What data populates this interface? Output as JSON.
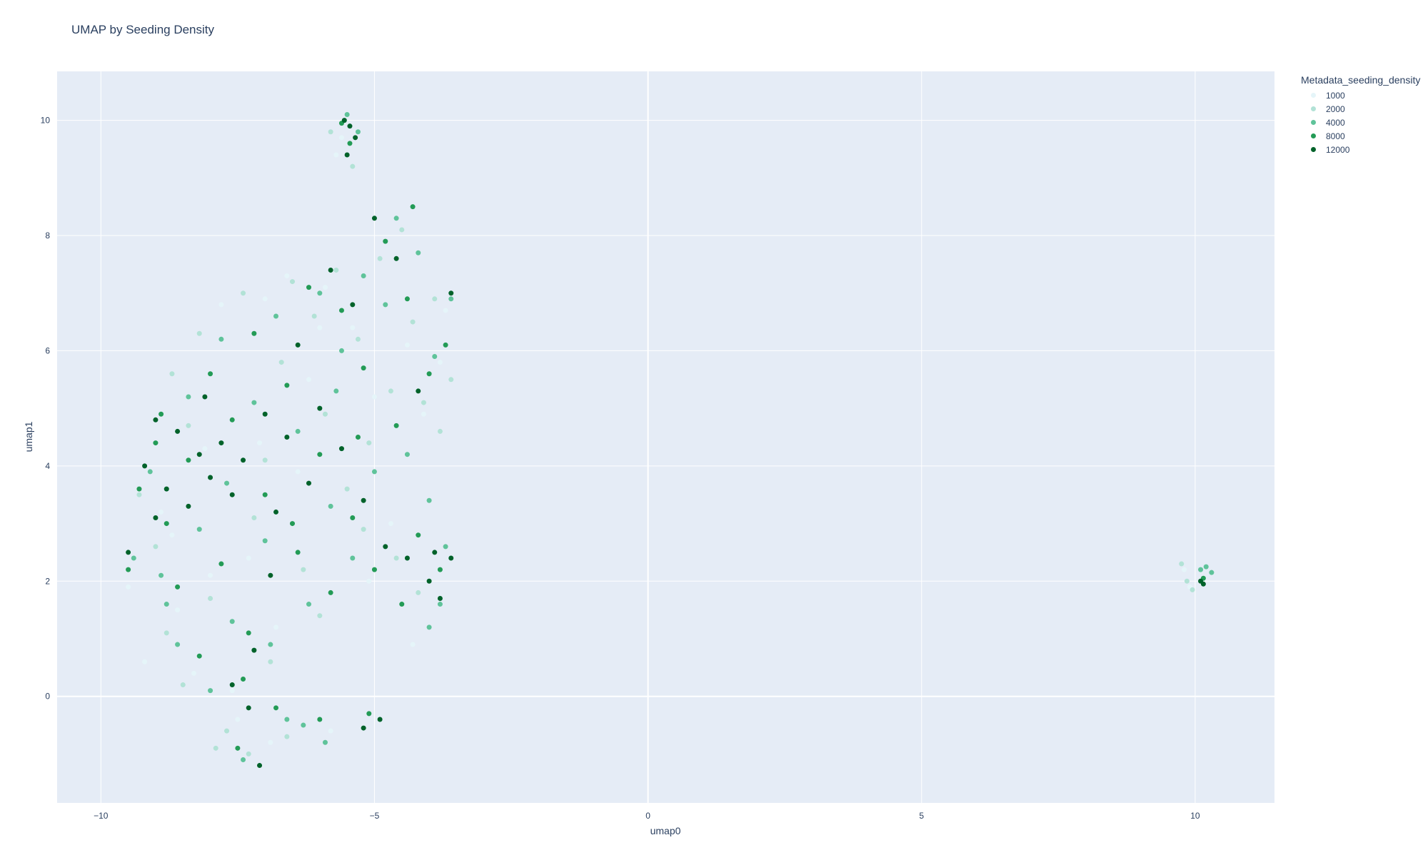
{
  "chart_data": {
    "type": "scatter",
    "title": "UMAP by Seeding Density",
    "xlabel": "umap0",
    "ylabel": "umap1",
    "xlim": [
      -10.8,
      11.45
    ],
    "ylim": [
      -1.85,
      10.85
    ],
    "xticks": [
      -10,
      -5,
      0,
      5,
      10
    ],
    "yticks": [
      0,
      2,
      4,
      6,
      8,
      10
    ],
    "xtick_labels": [
      "−10",
      "−5",
      "0",
      "5",
      "10"
    ],
    "ytick_labels": [
      "0",
      "2",
      "4",
      "6",
      "8",
      "10"
    ],
    "grid": true,
    "legend_placement": "right",
    "legend": {
      "title": "Metadata_seeding_density",
      "entries": [
        {
          "label": "1000",
          "color": "#e5f5f9"
        },
        {
          "label": "2000",
          "color": "#b2e2d6"
        },
        {
          "label": "4000",
          "color": "#5fc39a"
        },
        {
          "label": "8000",
          "color": "#239b56"
        },
        {
          "label": "12000",
          "color": "#00622a"
        }
      ]
    },
    "series": [
      {
        "name": "1000",
        "color": "#e5f5f9",
        "points": [
          [
            -8.9,
            3.2
          ],
          [
            -8.6,
            1.5
          ],
          [
            -8.3,
            0.4
          ],
          [
            -7.8,
            6.8
          ],
          [
            -7.5,
            -0.4
          ],
          [
            -7.0,
            6.9
          ],
          [
            -6.6,
            7.3
          ],
          [
            -6.2,
            5.5
          ],
          [
            -5.9,
            7.1
          ],
          [
            -5.4,
            6.4
          ],
          [
            -5.0,
            5.2
          ],
          [
            -4.7,
            3.0
          ],
          [
            -4.4,
            6.1
          ],
          [
            -4.1,
            4.9
          ],
          [
            -3.8,
            5.8
          ],
          [
            -3.7,
            6.7
          ],
          [
            -4.3,
            0.9
          ],
          [
            -5.1,
            2.0
          ],
          [
            -6.8,
            1.2
          ],
          [
            -7.3,
            2.4
          ],
          [
            -8.0,
            2.1
          ],
          [
            -8.7,
            2.8
          ],
          [
            -9.5,
            1.9
          ],
          [
            -9.2,
            0.6
          ],
          [
            -8.1,
            4.3
          ],
          [
            -6.4,
            3.9
          ],
          [
            -5.6,
            9.7
          ],
          [
            -5.7,
            9.4
          ],
          [
            9.8,
            2.2
          ],
          [
            9.9,
            1.9
          ],
          [
            -7.6,
            0.1
          ],
          [
            -6.9,
            -0.8
          ],
          [
            -5.8,
            -0.6
          ],
          [
            -7.1,
            4.4
          ],
          [
            -6.0,
            6.4
          ]
        ]
      },
      {
        "name": "2000",
        "color": "#b2e2d6",
        "points": [
          [
            -9.0,
            2.6
          ],
          [
            -8.8,
            1.1
          ],
          [
            -8.5,
            0.2
          ],
          [
            -8.2,
            6.3
          ],
          [
            -8.0,
            1.7
          ],
          [
            -7.7,
            -0.6
          ],
          [
            -7.4,
            7.0
          ],
          [
            -7.2,
            3.1
          ],
          [
            -6.9,
            0.6
          ],
          [
            -6.7,
            5.8
          ],
          [
            -6.5,
            7.2
          ],
          [
            -6.3,
            2.2
          ],
          [
            -6.1,
            6.6
          ],
          [
            -5.9,
            4.9
          ],
          [
            -5.7,
            7.4
          ],
          [
            -5.5,
            3.6
          ],
          [
            -5.3,
            6.2
          ],
          [
            -5.1,
            4.4
          ],
          [
            -4.9,
            7.6
          ],
          [
            -4.7,
            5.3
          ],
          [
            -4.5,
            8.1
          ],
          [
            -4.3,
            6.5
          ],
          [
            -4.1,
            5.1
          ],
          [
            -3.9,
            6.9
          ],
          [
            -3.8,
            4.6
          ],
          [
            -3.6,
            5.5
          ],
          [
            -4.2,
            1.8
          ],
          [
            -4.6,
            2.4
          ],
          [
            -5.8,
            9.8
          ],
          [
            -5.4,
            9.2
          ],
          [
            9.75,
            2.3
          ],
          [
            9.85,
            2.0
          ],
          [
            9.95,
            1.85
          ],
          [
            -7.9,
            -0.9
          ],
          [
            -7.3,
            -1.0
          ],
          [
            -6.6,
            -0.7
          ],
          [
            -8.4,
            4.7
          ],
          [
            -7.0,
            4.1
          ],
          [
            -9.3,
            3.5
          ],
          [
            -8.7,
            5.6
          ],
          [
            -6.0,
            1.4
          ],
          [
            -5.2,
            2.9
          ]
        ]
      },
      {
        "name": "4000",
        "color": "#5fc39a",
        "points": [
          [
            -9.1,
            3.9
          ],
          [
            -8.9,
            2.1
          ],
          [
            -8.6,
            0.9
          ],
          [
            -8.4,
            5.2
          ],
          [
            -8.2,
            2.9
          ],
          [
            -8.0,
            0.1
          ],
          [
            -7.8,
            6.2
          ],
          [
            -7.6,
            1.3
          ],
          [
            -7.4,
            -1.1
          ],
          [
            -7.2,
            5.1
          ],
          [
            -7.0,
            2.7
          ],
          [
            -6.8,
            6.6
          ],
          [
            -6.6,
            -0.4
          ],
          [
            -6.4,
            4.6
          ],
          [
            -6.2,
            1.6
          ],
          [
            -6.0,
            7.0
          ],
          [
            -5.8,
            3.3
          ],
          [
            -5.6,
            6.0
          ],
          [
            -5.4,
            2.4
          ],
          [
            -5.2,
            7.3
          ],
          [
            -5.0,
            3.9
          ],
          [
            -4.8,
            6.8
          ],
          [
            -4.6,
            8.3
          ],
          [
            -4.4,
            4.2
          ],
          [
            -4.2,
            7.7
          ],
          [
            -4.0,
            3.4
          ],
          [
            -3.9,
            5.9
          ],
          [
            -3.7,
            2.6
          ],
          [
            -3.6,
            6.9
          ],
          [
            -3.8,
            1.6
          ],
          [
            -4.0,
            1.2
          ],
          [
            -5.5,
            10.1
          ],
          [
            -5.3,
            9.8
          ],
          [
            10.1,
            2.2
          ],
          [
            10.2,
            2.25
          ],
          [
            10.3,
            2.15
          ],
          [
            -6.3,
            -0.5
          ],
          [
            -5.9,
            -0.8
          ],
          [
            -8.8,
            1.6
          ],
          [
            -7.7,
            3.7
          ],
          [
            -6.9,
            0.9
          ],
          [
            -9.4,
            2.4
          ],
          [
            -5.7,
            5.3
          ]
        ]
      },
      {
        "name": "8000",
        "color": "#239b56",
        "points": [
          [
            -9.3,
            3.6
          ],
          [
            -9.0,
            4.4
          ],
          [
            -8.8,
            3.0
          ],
          [
            -8.6,
            1.9
          ],
          [
            -8.4,
            4.1
          ],
          [
            -8.2,
            0.7
          ],
          [
            -8.0,
            5.6
          ],
          [
            -7.8,
            2.3
          ],
          [
            -7.6,
            4.8
          ],
          [
            -7.4,
            0.3
          ],
          [
            -7.2,
            6.3
          ],
          [
            -7.0,
            3.5
          ],
          [
            -6.8,
            -0.2
          ],
          [
            -6.6,
            5.4
          ],
          [
            -6.4,
            2.5
          ],
          [
            -6.2,
            7.1
          ],
          [
            -6.0,
            4.2
          ],
          [
            -5.8,
            1.8
          ],
          [
            -5.6,
            6.7
          ],
          [
            -5.4,
            3.1
          ],
          [
            -5.2,
            5.7
          ],
          [
            -5.0,
            2.2
          ],
          [
            -4.8,
            7.9
          ],
          [
            -4.6,
            4.7
          ],
          [
            -4.4,
            6.9
          ],
          [
            -4.2,
            2.8
          ],
          [
            -4.0,
            5.6
          ],
          [
            -3.8,
            2.2
          ],
          [
            -3.7,
            6.1
          ],
          [
            -4.3,
            8.5
          ],
          [
            -5.6,
            9.95
          ],
          [
            -5.45,
            9.6
          ],
          [
            10.15,
            2.05
          ],
          [
            -7.5,
            -0.9
          ],
          [
            -6.0,
            -0.4
          ],
          [
            -5.1,
            -0.3
          ],
          [
            -9.5,
            2.2
          ],
          [
            -8.9,
            4.9
          ],
          [
            -7.3,
            1.1
          ],
          [
            -6.5,
            3.0
          ],
          [
            -5.3,
            4.5
          ],
          [
            -4.5,
            1.6
          ]
        ]
      },
      {
        "name": "12000",
        "color": "#00622a",
        "points": [
          [
            -9.2,
            4.0
          ],
          [
            -9.5,
            2.5
          ],
          [
            -9.0,
            4.8
          ],
          [
            -8.8,
            3.6
          ],
          [
            -8.6,
            4.6
          ],
          [
            -8.4,
            3.3
          ],
          [
            -8.2,
            4.2
          ],
          [
            -8.0,
            3.8
          ],
          [
            -7.8,
            4.4
          ],
          [
            -7.6,
            3.5
          ],
          [
            -7.4,
            4.1
          ],
          [
            -7.2,
            0.8
          ],
          [
            -7.1,
            -1.2
          ],
          [
            -7.0,
            4.9
          ],
          [
            -6.8,
            3.2
          ],
          [
            -6.6,
            4.5
          ],
          [
            -6.4,
            6.1
          ],
          [
            -6.2,
            3.7
          ],
          [
            -6.0,
            5.0
          ],
          [
            -5.8,
            7.4
          ],
          [
            -5.6,
            4.3
          ],
          [
            -5.4,
            6.8
          ],
          [
            -5.2,
            3.4
          ],
          [
            -5.0,
            8.3
          ],
          [
            -4.8,
            2.6
          ],
          [
            -4.6,
            7.6
          ],
          [
            -4.4,
            2.4
          ],
          [
            -4.2,
            5.3
          ],
          [
            -4.0,
            2.0
          ],
          [
            -3.9,
            2.5
          ],
          [
            -3.8,
            1.7
          ],
          [
            -3.6,
            2.4
          ],
          [
            -3.6,
            7.0
          ],
          [
            -5.55,
            10.0
          ],
          [
            -5.45,
            9.9
          ],
          [
            -5.35,
            9.7
          ],
          [
            -5.5,
            9.4
          ],
          [
            10.15,
            1.95
          ],
          [
            10.1,
            2.0
          ],
          [
            -4.9,
            -0.4
          ],
          [
            -5.2,
            -0.55
          ],
          [
            -7.3,
            -0.2
          ],
          [
            -7.6,
            0.2
          ],
          [
            -8.1,
            5.2
          ],
          [
            -6.9,
            2.1
          ],
          [
            -9.0,
            3.1
          ]
        ]
      }
    ]
  }
}
